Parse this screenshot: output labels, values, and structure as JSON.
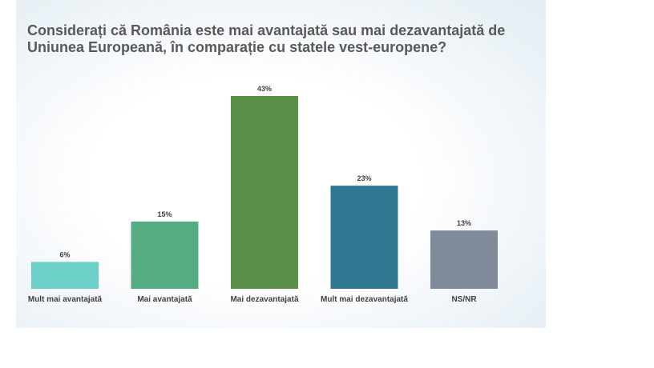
{
  "chart_data": {
    "type": "bar",
    "title": "Considerați că România este mai avantajată sau mai dezavantajată de Uniunea Europeană, în comparație cu statele vest-europene?",
    "categories": [
      "Mult mai avantajată",
      "Mai avantajată",
      "Mai dezavantajată",
      "Mult mai dezavantajată",
      "NS/NR"
    ],
    "values": [
      6,
      15,
      43,
      23,
      13
    ],
    "value_labels": [
      "6%",
      "15%",
      "43%",
      "23%",
      "13%"
    ],
    "colors": [
      "#6ccfc8",
      "#55ab82",
      "#5a8f47",
      "#2e7991",
      "#7f8a9a"
    ],
    "ylim": [
      0,
      45
    ],
    "grid": false,
    "legend": "none"
  }
}
